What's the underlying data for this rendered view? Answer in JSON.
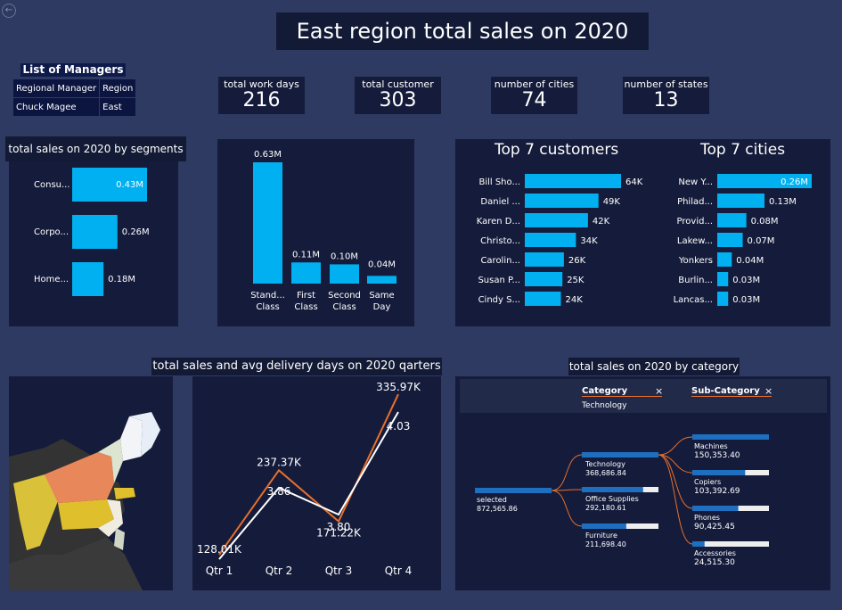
{
  "page_title": "East region total sales on 2020",
  "managers": {
    "title": "List of Managers",
    "headers": [
      "Regional Manager",
      "Region"
    ],
    "rows": [
      [
        "Chuck Magee",
        "East"
      ]
    ]
  },
  "kpis": [
    {
      "label": "total work days",
      "value": "216"
    },
    {
      "label": "total customer",
      "value": "303"
    },
    {
      "label": "number of cities",
      "value": "74"
    },
    {
      "label": "number of states",
      "value": "13"
    }
  ],
  "segments_title": "total sales on 2020 by segments",
  "ship_title": "",
  "customers_title": "Top 7 customers",
  "cities_title": "Top 7 cities",
  "quarters_title": "total sales and avg delivery days on 2020 qarters",
  "category_title": "total sales on 2020 by category",
  "colors": {
    "accent": "#00b0f0",
    "line1": "#e86f2c",
    "line2": "#ffffff",
    "panel": "#151c3b",
    "bg": "#2e3a62"
  },
  "chart_data": [
    {
      "type": "bar",
      "orientation": "horizontal",
      "categories": [
        "Consu...",
        "Corpo...",
        "Home..."
      ],
      "values": [
        0.43,
        0.26,
        0.18
      ],
      "labels": [
        "0.43M",
        "0.26M",
        "0.18M"
      ]
    },
    {
      "type": "bar",
      "orientation": "vertical",
      "categories": [
        "Stand... Class",
        "First Class",
        "Second Class",
        "Same Day"
      ],
      "values": [
        0.63,
        0.11,
        0.1,
        0.04
      ],
      "labels": [
        "0.63M",
        "0.11M",
        "0.10M",
        "0.04M"
      ]
    },
    {
      "type": "bar",
      "orientation": "horizontal",
      "title": "Top 7 customers",
      "categories": [
        "Bill Sho...",
        "Daniel ...",
        "Karen D...",
        "Christo...",
        "Carolin...",
        "Susan P...",
        "Cindy S..."
      ],
      "values": [
        64,
        49,
        42,
        34,
        26,
        25,
        24
      ],
      "labels": [
        "64K",
        "49K",
        "42K",
        "34K",
        "26K",
        "25K",
        "24K"
      ]
    },
    {
      "type": "bar",
      "orientation": "horizontal",
      "title": "Top 7 cities",
      "categories": [
        "New Y...",
        "Philad...",
        "Provid...",
        "Lakew...",
        "Yonkers",
        "Burlin...",
        "Lancas..."
      ],
      "values": [
        0.26,
        0.13,
        0.08,
        0.07,
        0.04,
        0.03,
        0.03
      ],
      "labels": [
        "0.26M",
        "0.13M",
        "0.08M",
        "0.07M",
        "0.04M",
        "0.03M",
        "0.03M"
      ]
    },
    {
      "type": "line",
      "title": "total sales and avg delivery days on 2020 qarters",
      "categories": [
        "Qtr 1",
        "Qtr 2",
        "Qtr 3",
        "Qtr 4"
      ],
      "series": [
        {
          "values": [
            128.01,
            237.37,
            171.22,
            335.97
          ],
          "labels": [
            "128.01K",
            "237.37K",
            "171.22K",
            "335.97K"
          ]
        },
        {
          "values": [
            3.7,
            3.86,
            3.8,
            4.03
          ],
          "labels": [
            "",
            "3.86",
            "3.80",
            "4.03"
          ]
        }
      ]
    }
  ],
  "decomp": {
    "filters": [
      {
        "name": "Category",
        "value": "Technology"
      },
      {
        "name": "Sub-Category",
        "value": ""
      }
    ],
    "close": "×",
    "root": {
      "label": "selected",
      "value": "872,565.86"
    },
    "level1": [
      {
        "label": "Technology",
        "value": "368,686.84",
        "frac": 1.0
      },
      {
        "label": "Office Supplies",
        "value": "292,180.61",
        "frac": 0.8
      },
      {
        "label": "Furniture",
        "value": "211,698.40",
        "frac": 0.58
      }
    ],
    "level2": [
      {
        "label": "Machines",
        "value": "150,353.40",
        "frac": 1.0
      },
      {
        "label": "Copiers",
        "value": "103,392.69",
        "frac": 0.69
      },
      {
        "label": "Phones",
        "value": "90,425.45",
        "frac": 0.6
      },
      {
        "label": "Accessories",
        "value": "24,515.30",
        "frac": 0.16
      }
    ]
  }
}
